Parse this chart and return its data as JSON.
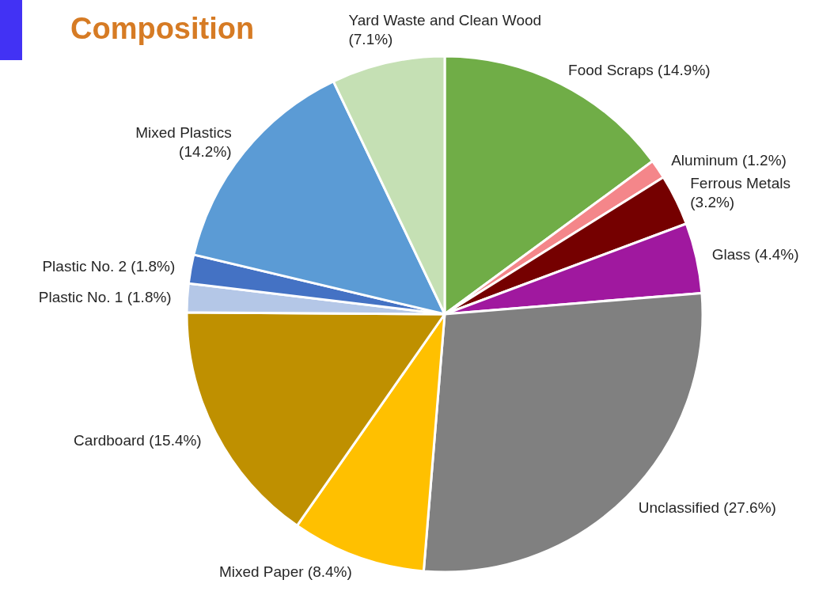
{
  "chart_data": {
    "type": "pie",
    "title": "Composition",
    "categories": [
      "Food Scraps",
      "Aluminum",
      "Ferrous Metals",
      "Glass",
      "Unclassified",
      "Mixed Paper",
      "Cardboard",
      "Plastic No. 1",
      "Plastic No. 2",
      "Mixed Plastics",
      "Yard Waste and Clean Wood"
    ],
    "values": [
      14.9,
      1.2,
      3.2,
      4.4,
      27.6,
      8.4,
      15.4,
      1.8,
      1.8,
      14.2,
      7.1
    ],
    "colors": [
      "#70ad47",
      "#f4868a",
      "#750000",
      "#a0189f",
      "#808080",
      "#ffc000",
      "#bf9000",
      "#b4c7e7",
      "#4472c4",
      "#5b9bd5",
      "#c5e0b4"
    ],
    "value_labels": [
      "(14.9%)",
      "(1.2%)",
      "(3.2%)",
      "(4.4%)",
      "(27.6%)",
      "(8.4%)",
      "(15.4%)",
      "(1.8%)",
      "(1.8%)",
      "(14.2%)",
      "(7.1%)"
    ]
  }
}
